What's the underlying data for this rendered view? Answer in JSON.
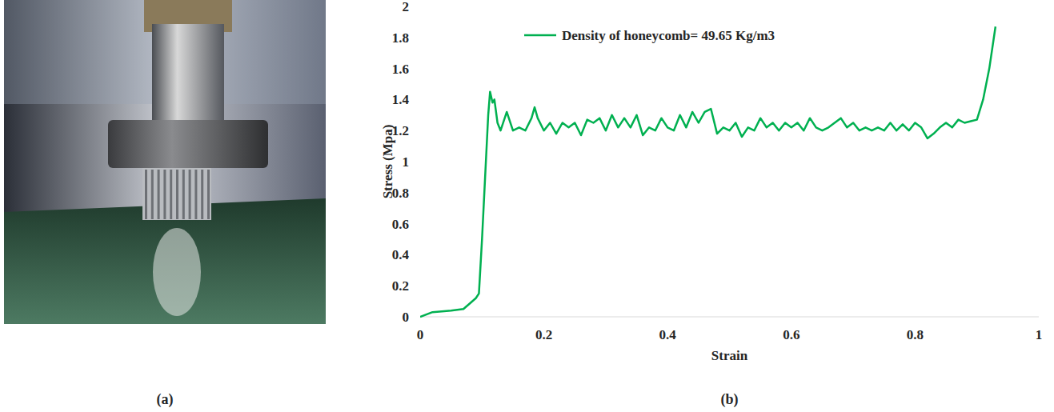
{
  "photo": {
    "label": "(a)"
  },
  "chart_data": {
    "type": "line",
    "panel_label": "(b)",
    "x_label": "Strain",
    "y_label": "Stress (Mpa)",
    "xlim": [
      0,
      1
    ],
    "ylim": [
      0,
      2
    ],
    "xticks": [
      0,
      0.2,
      0.4,
      0.6,
      0.8,
      1
    ],
    "yticks": [
      0,
      0.2,
      0.4,
      0.6,
      0.8,
      1,
      1.2,
      1.4,
      1.6,
      1.8,
      2
    ],
    "grid": false,
    "legend": "top",
    "x": [
      0,
      0.02,
      0.05,
      0.07,
      0.09,
      0.095,
      0.1,
      0.105,
      0.11,
      0.113,
      0.117,
      0.12,
      0.125,
      0.13,
      0.14,
      0.15,
      0.16,
      0.17,
      0.18,
      0.185,
      0.19,
      0.2,
      0.21,
      0.22,
      0.23,
      0.24,
      0.25,
      0.26,
      0.27,
      0.28,
      0.29,
      0.3,
      0.31,
      0.32,
      0.33,
      0.34,
      0.35,
      0.36,
      0.37,
      0.38,
      0.39,
      0.4,
      0.41,
      0.42,
      0.43,
      0.44,
      0.45,
      0.46,
      0.47,
      0.48,
      0.49,
      0.5,
      0.51,
      0.52,
      0.53,
      0.54,
      0.55,
      0.56,
      0.57,
      0.58,
      0.59,
      0.6,
      0.61,
      0.62,
      0.63,
      0.64,
      0.65,
      0.66,
      0.67,
      0.68,
      0.69,
      0.7,
      0.71,
      0.72,
      0.73,
      0.74,
      0.75,
      0.76,
      0.77,
      0.78,
      0.79,
      0.8,
      0.81,
      0.82,
      0.83,
      0.84,
      0.85,
      0.86,
      0.87,
      0.88,
      0.89,
      0.9,
      0.91,
      0.92,
      0.93
    ],
    "series": [
      {
        "name": "Density of honeycomb= 49.65 Kg/m3",
        "color": "#00b050",
        "values": [
          0,
          0.03,
          0.04,
          0.05,
          0.12,
          0.15,
          0.5,
          0.9,
          1.3,
          1.45,
          1.38,
          1.4,
          1.25,
          1.2,
          1.32,
          1.2,
          1.22,
          1.2,
          1.28,
          1.35,
          1.28,
          1.2,
          1.25,
          1.18,
          1.25,
          1.22,
          1.25,
          1.17,
          1.27,
          1.25,
          1.28,
          1.2,
          1.3,
          1.22,
          1.28,
          1.22,
          1.3,
          1.17,
          1.22,
          1.2,
          1.28,
          1.22,
          1.2,
          1.3,
          1.22,
          1.32,
          1.25,
          1.32,
          1.34,
          1.18,
          1.22,
          1.2,
          1.25,
          1.16,
          1.22,
          1.2,
          1.28,
          1.22,
          1.25,
          1.2,
          1.25,
          1.22,
          1.25,
          1.2,
          1.28,
          1.22,
          1.2,
          1.22,
          1.25,
          1.28,
          1.22,
          1.25,
          1.2,
          1.22,
          1.2,
          1.22,
          1.2,
          1.25,
          1.2,
          1.24,
          1.2,
          1.25,
          1.22,
          1.15,
          1.18,
          1.22,
          1.25,
          1.22,
          1.27,
          1.25,
          1.26,
          1.27,
          1.4,
          1.6,
          1.87
        ]
      }
    ]
  }
}
